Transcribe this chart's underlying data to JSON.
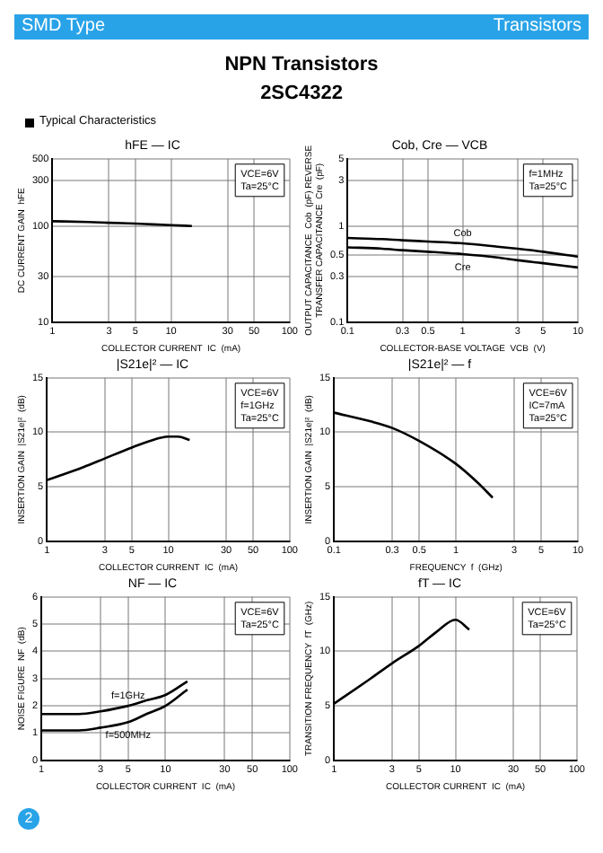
{
  "chart_data": [
    {
      "type": "other",
      "title": "NPN Transistors",
      "subtitle": "2SC4322",
      "annotations": [
        "SMD Type",
        "Transistors",
        "Typical Characteristics",
        "2"
      ]
    },
    {
      "type": "line",
      "title": "hFE — IC",
      "xlabel": "COLLECTOR CURRENT  IC  (mA)",
      "ylabel": "DC CURRENT GAIN  hFE",
      "log": "xy",
      "xlim": [
        1,
        100
      ],
      "xticks": [
        1,
        3,
        5,
        10,
        30,
        50,
        100
      ],
      "ylim": [
        10,
        500
      ],
      "yticks": [
        10,
        30,
        100,
        300,
        500
      ],
      "grid": true,
      "marker": "none",
      "x": [
        1,
        2,
        3,
        5,
        7,
        10,
        15
      ],
      "series": [
        {
          "color": "#000000",
          "values": [
            112,
            110,
            108,
            106,
            104,
            102,
            100
          ]
        }
      ],
      "annotations": [
        "VCE=6V",
        "Ta=25°C"
      ]
    },
    {
      "type": "line",
      "title": "Cob, Cre — VCB",
      "xlabel": "COLLECTOR-BASE VOLTAGE  VCB  (V)",
      "ylabel": "OUTPUT CAPACITANCE  Cob  (pF) REVERSE TRANSFER CAPACITANCE  Cre  (pF)",
      "log": "xy",
      "xlim": [
        0.1,
        10
      ],
      "xticks": [
        0.1,
        0.3,
        0.5,
        1,
        3,
        5,
        10
      ],
      "ylim": [
        0.1,
        5
      ],
      "yticks": [
        0.1,
        0.3,
        0.5,
        1,
        3,
        5
      ],
      "grid": true,
      "marker": "none",
      "x": [
        0.1,
        0.2,
        0.3,
        0.5,
        1,
        2,
        3,
        5,
        10
      ],
      "series": [
        {
          "name": "Cob",
          "color": "#000000",
          "values": [
            0.75,
            0.73,
            0.71,
            0.69,
            0.66,
            0.61,
            0.58,
            0.54,
            0.48
          ]
        },
        {
          "name": "Cre",
          "color": "#000000",
          "values": [
            0.6,
            0.58,
            0.56,
            0.54,
            0.51,
            0.47,
            0.44,
            0.41,
            0.37
          ]
        }
      ],
      "annotations": [
        "f=1MHz",
        "Ta=25°C"
      ]
    },
    {
      "type": "line",
      "title": "|S21e|² — IC",
      "xlabel": "COLLECTOR CURRENT  IC  (mA)",
      "ylabel": "INSERTION GAIN  |S21e|²  (dB)",
      "log": "x",
      "xlim": [
        1,
        100
      ],
      "xticks": [
        1,
        3,
        5,
        10,
        30,
        50,
        100
      ],
      "ylim": [
        0,
        15
      ],
      "yticks": [
        0,
        5,
        10,
        15
      ],
      "grid": true,
      "marker": "none",
      "x": [
        1,
        2,
        3,
        5,
        7,
        10,
        12,
        15
      ],
      "series": [
        {
          "color": "#000000",
          "values": [
            5.6,
            6.8,
            7.6,
            8.6,
            9.2,
            9.6,
            9.6,
            9.3
          ]
        }
      ],
      "annotations": [
        "VCE=6V",
        "f=1GHz",
        "Ta=25°C"
      ]
    },
    {
      "type": "line",
      "title": "|S21e|² — f",
      "xlabel": "FREQUENCY  f  (GHz)",
      "ylabel": "INSERTION GAIN  |S21e|²  (dB)",
      "log": "x",
      "xlim": [
        0.1,
        10
      ],
      "xticks": [
        0.1,
        0.3,
        0.5,
        1,
        3,
        5,
        10
      ],
      "ylim": [
        0,
        15
      ],
      "yticks": [
        0,
        5,
        10,
        15
      ],
      "grid": true,
      "marker": "none",
      "x": [
        0.1,
        0.2,
        0.3,
        0.5,
        1,
        1.5,
        2
      ],
      "series": [
        {
          "color": "#000000",
          "values": [
            11.8,
            11,
            10.4,
            9.2,
            7.1,
            5.4,
            4.0
          ]
        }
      ],
      "annotations": [
        "VCE=6V",
        "IC=7mA",
        "Ta=25°C"
      ]
    },
    {
      "type": "line",
      "title": "NF — IC",
      "xlabel": "COLLECTOR CURRENT  IC  (mA)",
      "ylabel": "NOISE FIGURE  NF  (dB)",
      "log": "x",
      "xlim": [
        1,
        100
      ],
      "xticks": [
        1,
        3,
        5,
        10,
        30,
        50,
        100
      ],
      "ylim": [
        0,
        6
      ],
      "yticks": [
        0,
        1,
        2,
        3,
        4,
        5,
        6
      ],
      "grid": true,
      "marker": "none",
      "x": [
        1,
        2,
        3,
        5,
        7,
        10,
        15
      ],
      "series": [
        {
          "name": "f=1GHz",
          "color": "#000000",
          "values": [
            1.7,
            1.7,
            1.8,
            2.0,
            2.2,
            2.4,
            2.9
          ]
        },
        {
          "name": "f=500MHz",
          "color": "#000000",
          "values": [
            1.1,
            1.1,
            1.2,
            1.4,
            1.7,
            2.0,
            2.6
          ]
        }
      ],
      "annotations": [
        "VCE=6V",
        "Ta=25°C"
      ]
    },
    {
      "type": "line",
      "title": "fT — IC",
      "xlabel": "COLLECTOR CURRENT  IC  (mA)",
      "ylabel": "TRANSITION FREQUENCY  fT  (GHz)",
      "log": "x",
      "xlim": [
        1,
        100
      ],
      "xticks": [
        1,
        3,
        5,
        10,
        30,
        50,
        100
      ],
      "ylim": [
        0,
        15
      ],
      "yticks": [
        0,
        5,
        10,
        15
      ],
      "grid": true,
      "marker": "none",
      "x": [
        1,
        2,
        3,
        5,
        7,
        10,
        13
      ],
      "series": [
        {
          "color": "#000000",
          "values": [
            5.2,
            7.5,
            8.9,
            10.5,
            11.8,
            12.9,
            12
          ]
        }
      ],
      "annotations": [
        "VCE=6V",
        "Ta=25°C"
      ]
    }
  ]
}
